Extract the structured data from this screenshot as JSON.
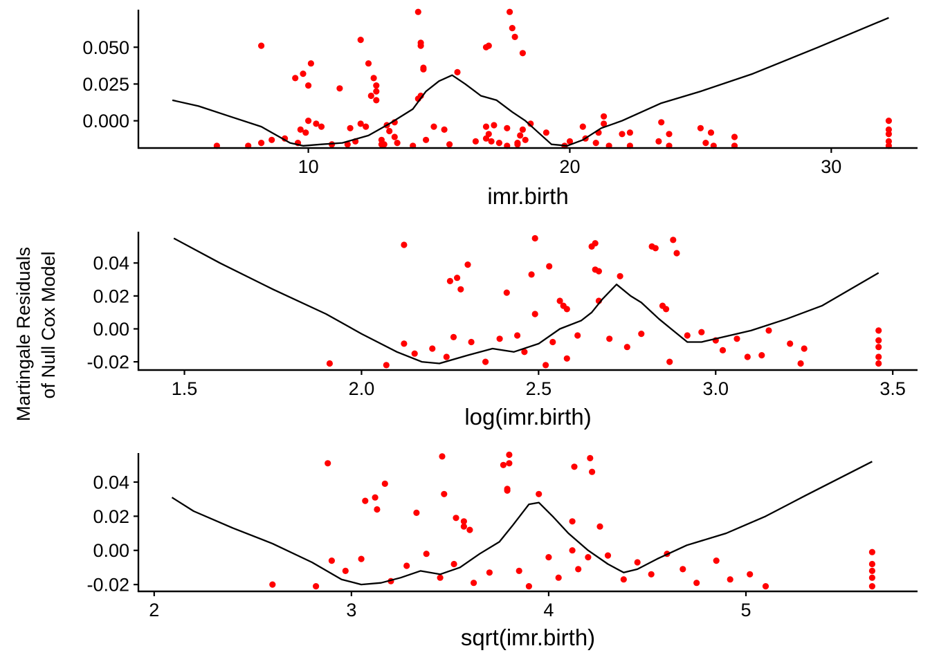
{
  "figure": {
    "ylabel_line1": "Martingale Residuals",
    "ylabel_line2": "of Null Cox Model"
  },
  "colors": {
    "points": "#ff0000",
    "smooth": "#000000",
    "axis": "#000000"
  },
  "chart_data": [
    {
      "type": "scatter",
      "title": "",
      "xlabel": "imr.birth",
      "ylabel": "",
      "xlim": [
        3.5,
        33.3
      ],
      "ylim": [
        -0.0185,
        0.0755
      ],
      "xticks": [
        10,
        20,
        30
      ],
      "xtick_labels": [
        "10",
        "20",
        "30"
      ],
      "yticks": [
        0.0,
        0.025,
        0.05
      ],
      "ytick_labels": [
        "0.000",
        "0.025",
        "0.050"
      ],
      "grid": false,
      "series": [
        {
          "kind": "points",
          "x": [
            8.2,
            9.5,
            9.8,
            10.0,
            10.1,
            11.2,
            12.0,
            12.3,
            12.4,
            12.5,
            12.6,
            12.6,
            12.6,
            14.2,
            14.3,
            14.3,
            14.4,
            14.4,
            14.3,
            14.2,
            15.7,
            16.8,
            16.9,
            17.7,
            17.8,
            17.9,
            18.2,
            10.0,
            10.3,
            10.5,
            9.7,
            9.9,
            11.6,
            12.0,
            12.2,
            13.3,
            14.8,
            15.2,
            17.1,
            17.6,
            18.5,
            19.1,
            20.5,
            21.3,
            21.3,
            21.1,
            22.0,
            22.3,
            23.5,
            23.8,
            25.0,
            25.4,
            26.3,
            32.2,
            32.2,
            32.2,
            32.2,
            32.2,
            6.5,
            7.7,
            8.2,
            8.6,
            9.1,
            9.6,
            10.9,
            11.5,
            11.8,
            12.8,
            13.4,
            14.0,
            14.5,
            15.4,
            16.4,
            16.8,
            17.3,
            17.6,
            18.0,
            18.3,
            19.8,
            20.0,
            20.6,
            21.0,
            21.5,
            22.3,
            23.4,
            23.8,
            25.2,
            25.5,
            26.3,
            13.0,
            13.1,
            13.3,
            12.8,
            12.9,
            16.8,
            16.9,
            17.0,
            18.2,
            18.1,
            18.0
          ],
          "y": [
            0.051,
            0.029,
            0.032,
            0.024,
            0.039,
            0.022,
            0.055,
            0.039,
            0.017,
            0.029,
            0.014,
            0.02,
            0.024,
            0.074,
            0.051,
            0.053,
            0.036,
            0.035,
            0.017,
            0.015,
            0.033,
            0.05,
            0.051,
            0.074,
            0.063,
            0.057,
            0.046,
            0.0,
            -0.002,
            -0.004,
            -0.006,
            -0.008,
            -0.005,
            -0.002,
            -0.004,
            -0.001,
            -0.004,
            -0.006,
            -0.003,
            -0.005,
            -0.002,
            -0.008,
            -0.004,
            0.003,
            -0.002,
            -0.008,
            -0.009,
            -0.008,
            -0.001,
            -0.009,
            -0.005,
            -0.008,
            -0.011,
            0.0,
            -0.006,
            -0.009,
            -0.014,
            -0.017,
            -0.017,
            -0.017,
            -0.015,
            -0.013,
            -0.012,
            -0.015,
            -0.016,
            -0.016,
            -0.014,
            -0.016,
            -0.015,
            -0.017,
            -0.013,
            -0.016,
            -0.014,
            -0.012,
            -0.015,
            -0.017,
            -0.016,
            -0.013,
            -0.017,
            -0.014,
            -0.012,
            -0.015,
            -0.017,
            -0.017,
            -0.014,
            -0.017,
            -0.015,
            -0.017,
            -0.017,
            -0.003,
            -0.007,
            -0.011,
            -0.013,
            -0.016,
            -0.004,
            -0.009,
            -0.014,
            -0.006,
            -0.01,
            -0.015
          ]
        },
        {
          "kind": "line",
          "x": [
            4.8,
            5.8,
            7.0,
            8.2,
            9.3,
            9.8,
            10.5,
            11.3,
            12.3,
            13.1,
            14.0,
            14.5,
            15.0,
            15.5,
            16.0,
            16.6,
            17.2,
            17.8,
            18.3,
            18.8,
            19.3,
            19.9,
            20.5,
            21.2,
            22.0,
            23.5,
            25.0,
            27.0,
            29.5,
            32.2
          ],
          "y": [
            0.014,
            0.01,
            0.003,
            -0.004,
            -0.015,
            -0.017,
            -0.016,
            -0.015,
            -0.01,
            -0.002,
            0.008,
            0.02,
            0.027,
            0.031,
            0.025,
            0.017,
            0.014,
            0.006,
            0.0,
            -0.008,
            -0.016,
            -0.017,
            -0.013,
            -0.005,
            0.0,
            0.012,
            0.02,
            0.032,
            0.05,
            0.07
          ]
        }
      ]
    },
    {
      "type": "scatter",
      "title": "",
      "xlabel": "log(imr.birth)",
      "ylabel": "",
      "xlim": [
        1.37,
        3.57
      ],
      "ylim": [
        -0.025,
        0.059
      ],
      "xticks": [
        1.5,
        2.0,
        2.5,
        3.0,
        3.5
      ],
      "xtick_labels": [
        "1.5",
        "2.0",
        "2.5",
        "3.0",
        "3.5"
      ],
      "yticks": [
        -0.02,
        0.0,
        0.02,
        0.04
      ],
      "ytick_labels": [
        "-0.02",
        "0.00",
        "0.02",
        "0.04"
      ],
      "grid": false,
      "series": [
        {
          "kind": "points",
          "x": [
            2.12,
            2.25,
            2.27,
            2.3,
            2.28,
            2.41,
            2.49,
            2.48,
            2.49,
            2.53,
            2.56,
            2.57,
            2.58,
            2.65,
            2.66,
            2.66,
            2.67,
            2.67,
            2.73,
            2.82,
            2.83,
            2.88,
            2.89,
            2.85,
            2.86,
            1.91,
            2.07,
            2.12,
            2.15,
            2.2,
            2.24,
            2.26,
            2.31,
            2.35,
            2.39,
            2.44,
            2.46,
            2.52,
            2.54,
            2.58,
            2.61,
            2.7,
            2.75,
            2.79,
            2.87,
            2.92,
            2.96,
            3.0,
            3.02,
            3.06,
            3.09,
            3.13,
            3.15,
            3.21,
            3.24,
            3.25,
            3.46,
            3.46,
            3.46,
            3.46,
            3.46
          ],
          "y": [
            0.051,
            0.029,
            0.031,
            0.039,
            0.024,
            0.022,
            0.055,
            0.033,
            0.009,
            0.038,
            0.017,
            0.014,
            0.012,
            0.05,
            0.052,
            0.036,
            0.035,
            0.017,
            0.032,
            0.05,
            0.049,
            0.054,
            0.046,
            0.014,
            0.012,
            -0.021,
            -0.022,
            -0.009,
            -0.015,
            -0.012,
            -0.017,
            -0.005,
            -0.008,
            -0.02,
            -0.006,
            -0.004,
            -0.014,
            -0.022,
            -0.008,
            -0.018,
            -0.004,
            -0.006,
            -0.011,
            -0.003,
            -0.02,
            -0.004,
            -0.002,
            -0.007,
            -0.013,
            -0.006,
            -0.017,
            -0.016,
            -0.001,
            -0.009,
            -0.021,
            -0.012,
            -0.001,
            -0.007,
            -0.011,
            -0.017,
            -0.021
          ]
        },
        {
          "kind": "line",
          "x": [
            1.47,
            1.6,
            1.75,
            1.9,
            2.0,
            2.1,
            2.17,
            2.22,
            2.3,
            2.37,
            2.43,
            2.5,
            2.56,
            2.62,
            2.65,
            2.68,
            2.72,
            2.76,
            2.79,
            2.84,
            2.88,
            2.92,
            2.96,
            3.02,
            3.1,
            3.2,
            3.3,
            3.46
          ],
          "y": [
            0.055,
            0.04,
            0.024,
            0.009,
            -0.003,
            -0.014,
            -0.02,
            -0.021,
            -0.016,
            -0.012,
            -0.014,
            -0.009,
            0.0,
            0.005,
            0.01,
            0.018,
            0.027,
            0.02,
            0.016,
            0.006,
            -0.001,
            -0.008,
            -0.008,
            -0.005,
            -0.001,
            0.006,
            0.014,
            0.034
          ]
        }
      ]
    },
    {
      "type": "scatter",
      "title": "",
      "xlabel": "sqrt(imr.birth)",
      "ylabel": "",
      "xlim": [
        1.92,
        5.87
      ],
      "ylim": [
        -0.024,
        0.057
      ],
      "xticks": [
        2,
        3,
        4,
        5
      ],
      "xtick_labels": [
        "2",
        "3",
        "4",
        "5"
      ],
      "yticks": [
        -0.02,
        0.0,
        0.02,
        0.04
      ],
      "ytick_labels": [
        "-0.02",
        "0.00",
        "0.02",
        "0.04"
      ],
      "grid": false,
      "series": [
        {
          "kind": "points",
          "x": [
            2.88,
            3.07,
            3.12,
            3.13,
            3.17,
            3.33,
            3.46,
            3.47,
            3.53,
            3.57,
            3.57,
            3.6,
            3.77,
            3.79,
            3.79,
            3.8,
            3.8,
            3.95,
            4.12,
            4.13,
            4.21,
            4.22,
            4.26,
            4.12,
            4.2,
            2.6,
            2.82,
            2.9,
            2.97,
            3.05,
            3.2,
            3.28,
            3.38,
            3.45,
            3.52,
            3.62,
            3.7,
            3.85,
            3.9,
            4.0,
            4.05,
            4.15,
            4.3,
            4.38,
            4.45,
            4.52,
            4.6,
            4.68,
            4.75,
            4.85,
            4.92,
            5.02,
            5.1,
            5.64,
            5.64,
            5.64,
            5.64,
            5.64
          ],
          "y": [
            0.051,
            0.029,
            0.031,
            0.024,
            0.039,
            0.022,
            0.055,
            0.033,
            0.019,
            0.017,
            0.014,
            0.012,
            0.05,
            0.035,
            0.036,
            0.051,
            0.056,
            0.033,
            0.017,
            0.049,
            0.054,
            0.046,
            0.014,
            0.0,
            -0.004,
            -0.02,
            -0.021,
            -0.006,
            -0.012,
            -0.005,
            -0.018,
            -0.009,
            -0.002,
            -0.016,
            -0.008,
            -0.019,
            -0.013,
            -0.012,
            -0.021,
            -0.004,
            -0.016,
            -0.011,
            -0.003,
            -0.017,
            -0.007,
            -0.014,
            -0.002,
            -0.011,
            -0.019,
            -0.006,
            -0.017,
            -0.014,
            -0.021,
            -0.001,
            -0.008,
            -0.012,
            -0.016,
            -0.021
          ]
        },
        {
          "kind": "line",
          "x": [
            2.09,
            2.2,
            2.4,
            2.6,
            2.8,
            2.95,
            3.05,
            3.15,
            3.25,
            3.35,
            3.45,
            3.55,
            3.65,
            3.75,
            3.82,
            3.9,
            3.95,
            4.02,
            4.1,
            4.2,
            4.3,
            4.38,
            4.45,
            4.55,
            4.7,
            4.9,
            5.1,
            5.3,
            5.64
          ],
          "y": [
            0.031,
            0.023,
            0.013,
            0.004,
            -0.007,
            -0.017,
            -0.02,
            -0.019,
            -0.016,
            -0.012,
            -0.014,
            -0.01,
            -0.002,
            0.005,
            0.015,
            0.027,
            0.028,
            0.02,
            0.01,
            0.0,
            -0.008,
            -0.013,
            -0.011,
            -0.005,
            0.003,
            0.01,
            0.02,
            0.032,
            0.052
          ]
        }
      ]
    }
  ]
}
